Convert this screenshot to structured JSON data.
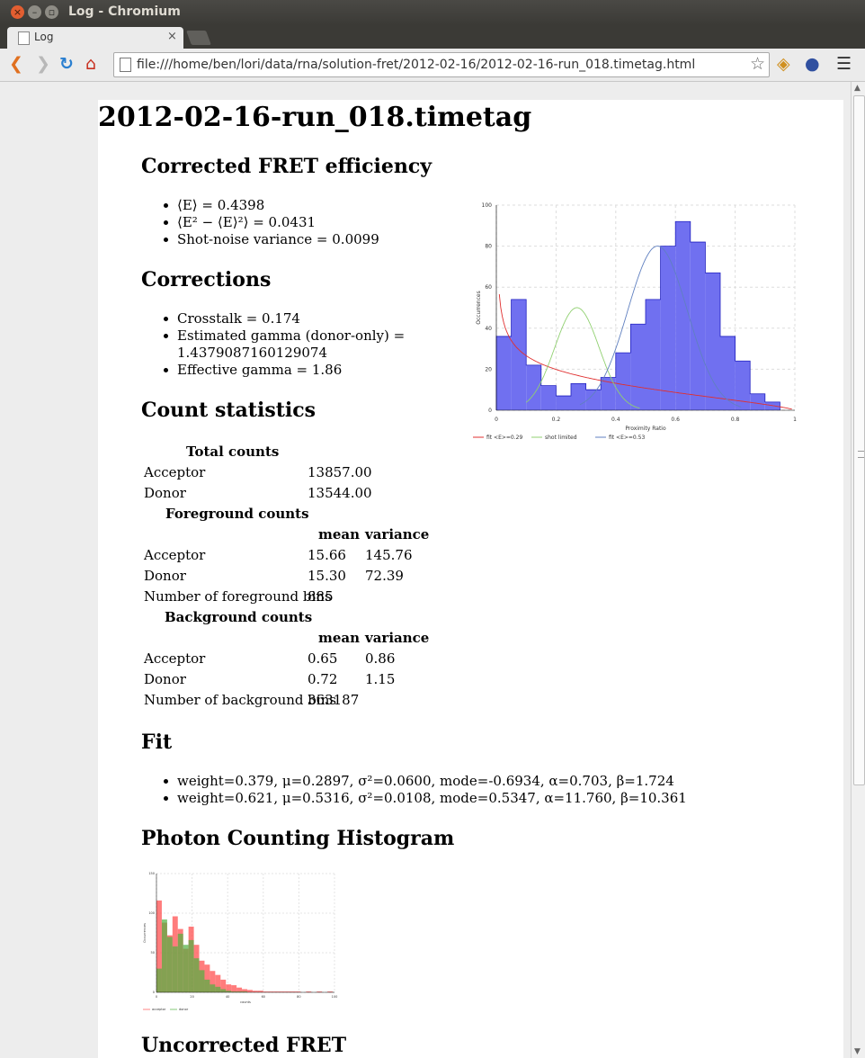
{
  "window": {
    "title": "Log - Chromium"
  },
  "tab": {
    "title": "Log"
  },
  "toolbar": {
    "url": "file:///home/ben/lori/data/rna/solution-fret/2012-02-16/2012-02-16-run_018.timetag.html"
  },
  "page": {
    "title": "2012-02-16-run_018.timetag",
    "fret": {
      "heading": "Corrected FRET efficiency",
      "items": [
        "⟨E⟩ = 0.4398",
        "⟨E² − ⟨E⟩²⟩ = 0.0431",
        "Shot-noise variance = 0.0099"
      ]
    },
    "corrections": {
      "heading": "Corrections",
      "items": [
        "Crosstalk = 0.174",
        "Estimated gamma (donor-only) =",
        "1.4379087160129074",
        "Effective gamma = 1.86"
      ]
    },
    "counts": {
      "heading": "Count statistics",
      "total_heading": "Total counts",
      "total_rows": [
        [
          "Acceptor",
          "13857.00"
        ],
        [
          "Donor",
          "13544.00"
        ]
      ],
      "fg_heading": "Foreground counts",
      "col_mean": "mean",
      "col_variance": "variance",
      "fg_rows": [
        [
          "Acceptor",
          "15.66",
          "145.76"
        ],
        [
          "Donor",
          "15.30",
          "72.39"
        ]
      ],
      "fg_bins": [
        "Number of foreground bins",
        "885"
      ],
      "bg_heading": "Background counts",
      "bg_rows": [
        [
          "Acceptor",
          "0.65",
          "0.86"
        ],
        [
          "Donor",
          "0.72",
          "1.15"
        ]
      ],
      "bg_bins": [
        "Number of background bins",
        "363187"
      ]
    },
    "fit": {
      "heading": "Fit",
      "items": [
        "weight=0.379, μ=0.2897, σ²=0.0600, mode=-0.6934, α=0.703, β=1.724",
        "weight=0.621, μ=0.5316, σ²=0.0108, mode=0.5347, α=11.760, β=10.361"
      ]
    },
    "photon": {
      "heading": "Photon Counting Histogram"
    },
    "uncorrected": {
      "heading": "Uncorrected FRET"
    }
  },
  "chart_data": [
    {
      "type": "bar",
      "xlabel": "Proximity Ratio",
      "ylabel": "Occurrences",
      "xlim": [
        0,
        1
      ],
      "ylim": [
        0,
        100
      ],
      "xticks": [
        "0",
        "0.2",
        "0.4",
        "0.6",
        "0.8",
        "1"
      ],
      "yticks": [
        "0",
        "20",
        "40",
        "60",
        "80",
        "100"
      ],
      "bin_edges": [
        0,
        0.05,
        0.1,
        0.15,
        0.2,
        0.25,
        0.3,
        0.35,
        0.4,
        0.45,
        0.5,
        0.55,
        0.6,
        0.65,
        0.7,
        0.75,
        0.8,
        0.85,
        0.9
      ],
      "values": [
        36,
        54,
        22,
        12,
        7,
        13,
        10,
        16,
        28,
        42,
        54,
        80,
        92,
        82,
        67,
        36,
        24,
        8,
        4
      ],
      "series": [
        {
          "name": "fit <E>=0.29",
          "color": "#e03030"
        },
        {
          "name": "shot limited",
          "color": "#90d070"
        },
        {
          "name": "fit <E>=0.53",
          "color": "#6080c0"
        }
      ],
      "grid": true,
      "legend": "bottom"
    },
    {
      "type": "bar",
      "xlabel": "counts",
      "ylabel": "Occurrences",
      "xlim": [
        0,
        100
      ],
      "ylim": [
        0,
        150
      ],
      "xticks": [
        "0",
        "20",
        "40",
        "60",
        "80",
        "100"
      ],
      "yticks": [
        "0",
        "50",
        "100",
        "150"
      ],
      "bin_width": 3,
      "series": [
        {
          "name": "acceptor",
          "color": "#ff5050",
          "values": [
            116,
            88,
            72,
            96,
            80,
            55,
            83,
            60,
            40,
            35,
            27,
            22,
            16,
            10,
            9,
            6,
            4,
            3,
            2,
            2,
            1,
            1,
            1,
            1,
            1,
            1,
            1,
            0,
            1,
            0,
            1,
            0,
            1
          ]
        },
        {
          "name": "donor",
          "color": "#50b040",
          "values": [
            30,
            92,
            70,
            58,
            74,
            60,
            66,
            43,
            28,
            16,
            10,
            7,
            4,
            2,
            1,
            1,
            1,
            0,
            0,
            0,
            0,
            0,
            0,
            0,
            0,
            0,
            0,
            0,
            0,
            0,
            0,
            0,
            0
          ]
        }
      ],
      "grid": true,
      "legend": "bottom"
    }
  ]
}
